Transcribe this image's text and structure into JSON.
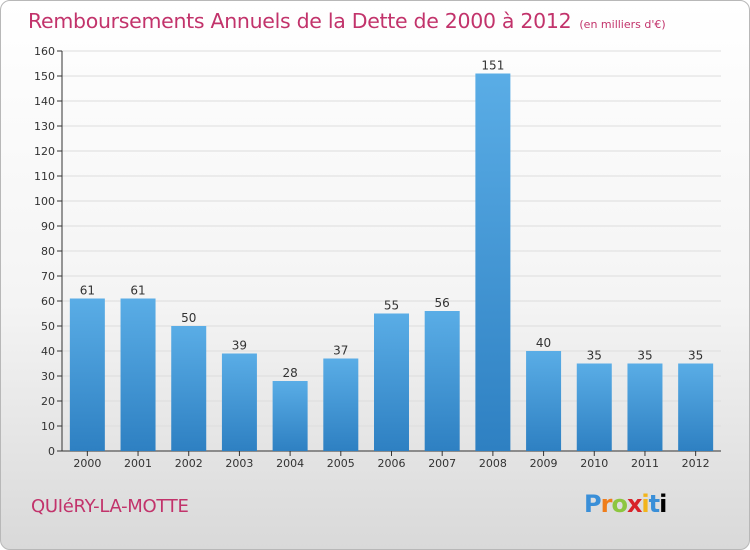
{
  "header": {
    "title": "Remboursements Annuels de la Dette de 2000 à 2012",
    "unit": "(en milliers d'€)"
  },
  "footer": {
    "town": "QUIéRY-LA-MOTTE",
    "logo_letters": [
      "P",
      "r",
      "o",
      "x",
      "i",
      "t",
      "i"
    ]
  },
  "colors": {
    "bar_top": "#5aade6",
    "bar_bottom": "#2e80c2",
    "title": "#c2336b",
    "grid": "#dddddd"
  },
  "chart_data": {
    "type": "bar",
    "categories": [
      "2000",
      "2001",
      "2002",
      "2003",
      "2004",
      "2005",
      "2006",
      "2007",
      "2008",
      "2009",
      "2010",
      "2011",
      "2012"
    ],
    "values": [
      61,
      61,
      50,
      39,
      28,
      37,
      55,
      56,
      151,
      40,
      35,
      35,
      35
    ],
    "ylim": [
      0,
      160
    ],
    "yticks": [
      0,
      10,
      20,
      30,
      40,
      50,
      60,
      70,
      80,
      90,
      100,
      110,
      120,
      130,
      140,
      150,
      160
    ],
    "grid": true,
    "data_labels": true
  }
}
